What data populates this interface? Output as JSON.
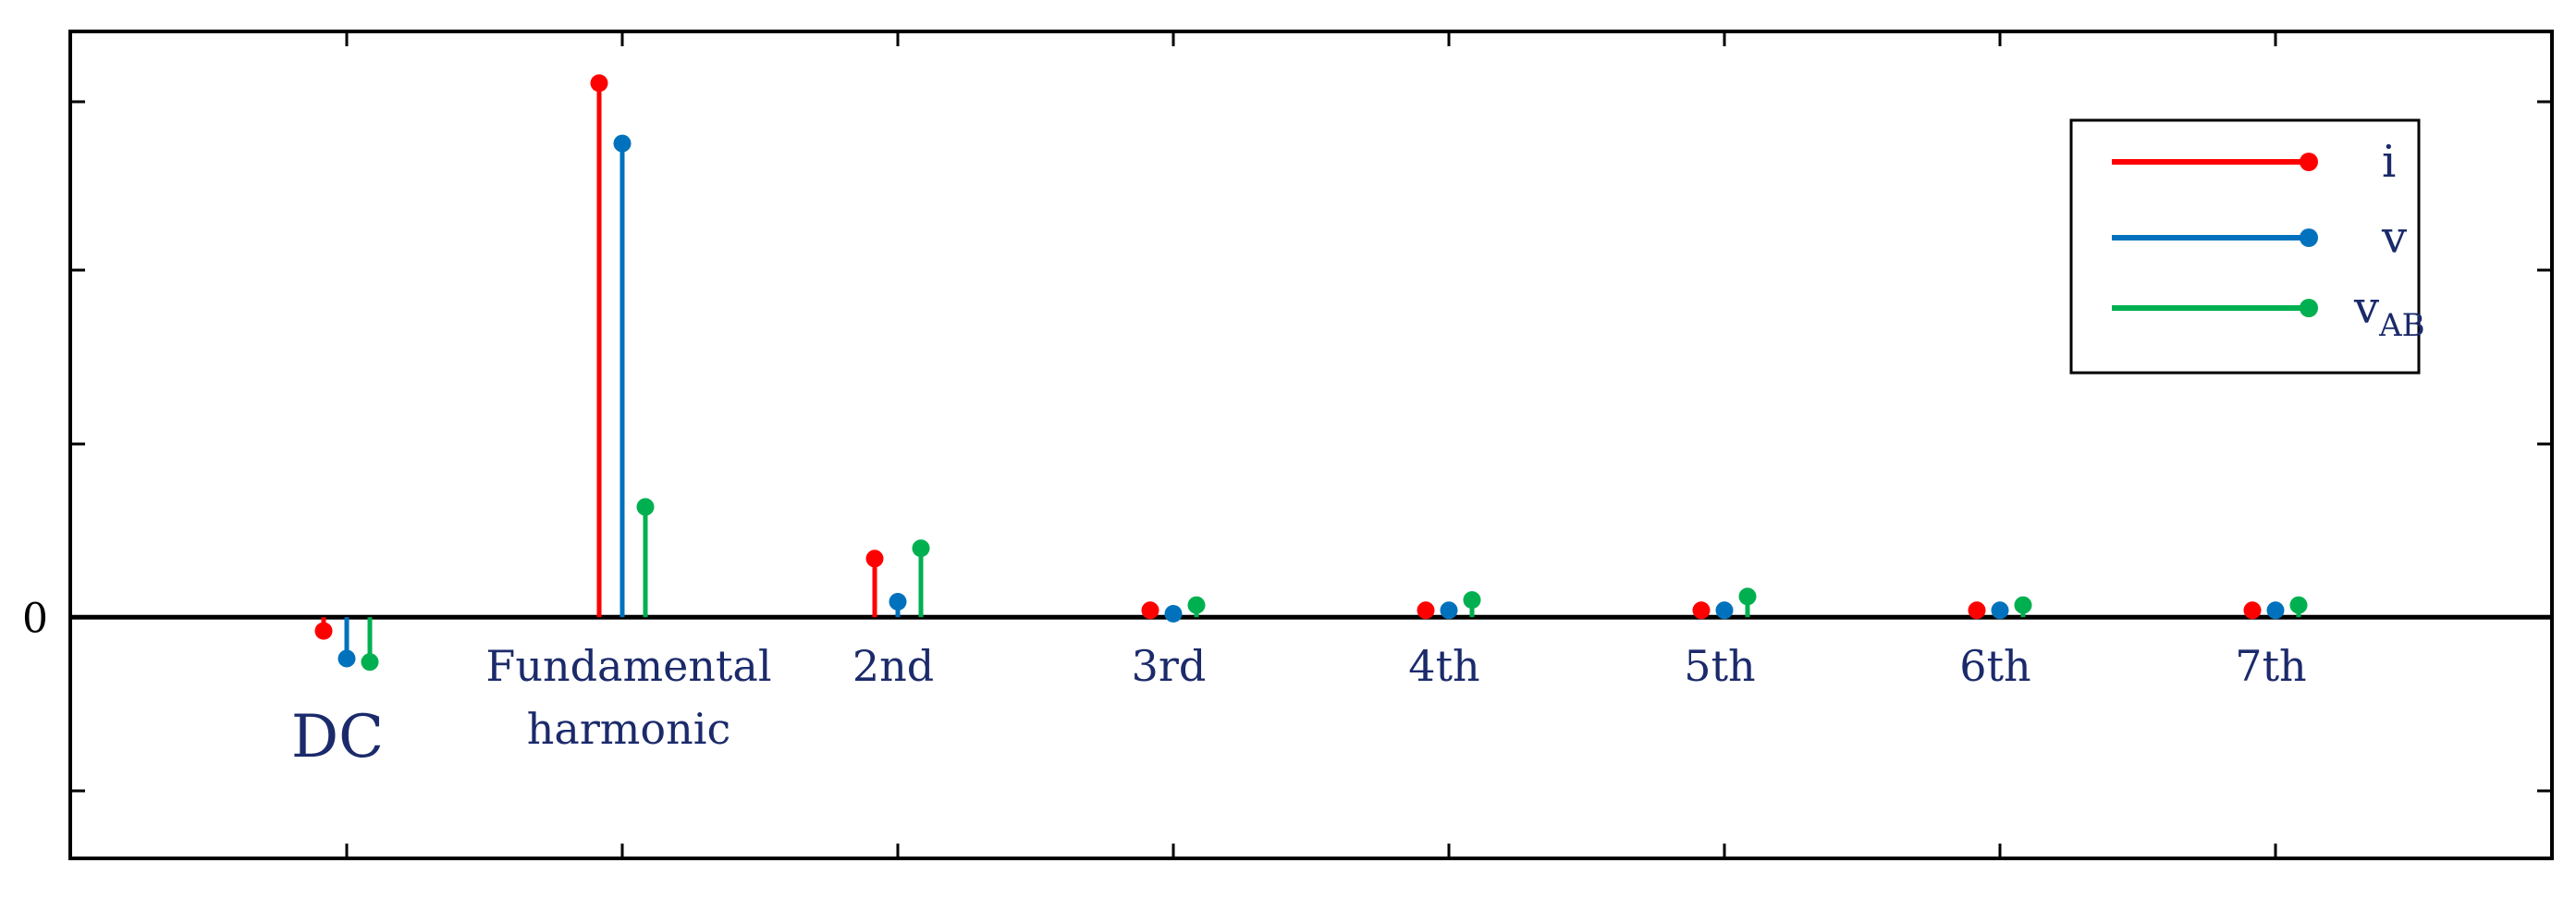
{
  "chart_data": {
    "type": "stem",
    "categories": [
      {
        "lines": [
          "DC"
        ],
        "big": true
      },
      {
        "lines": [
          "Fundamental",
          "harmonic"
        ],
        "big": false
      },
      {
        "lines": [
          "2nd"
        ],
        "big": false
      },
      {
        "lines": [
          "3rd"
        ],
        "big": false
      },
      {
        "lines": [
          "4th"
        ],
        "big": false
      },
      {
        "lines": [
          "5th"
        ],
        "big": false
      },
      {
        "lines": [
          "6th"
        ],
        "big": false
      },
      {
        "lines": [
          "7th"
        ],
        "big": false
      }
    ],
    "y_tick_label": "0",
    "ylim": [
      -1.4,
      3.4
    ],
    "series": [
      {
        "name": "i",
        "sub": "",
        "color": "#ff0000",
        "values": [
          -0.08,
          3.1,
          0.34,
          0.04,
          0.04,
          0.04,
          0.04,
          0.04
        ]
      },
      {
        "name": "v",
        "sub": "",
        "color": "#0072bd",
        "values": [
          -0.24,
          2.75,
          0.09,
          0.02,
          0.04,
          0.04,
          0.04,
          0.04
        ]
      },
      {
        "name": "v",
        "sub": "AB",
        "color": "#00b050",
        "values": [
          -0.26,
          0.64,
          0.4,
          0.07,
          0.1,
          0.12,
          0.07,
          0.07
        ]
      }
    ],
    "legend_position": "top-right",
    "grid": false
  }
}
